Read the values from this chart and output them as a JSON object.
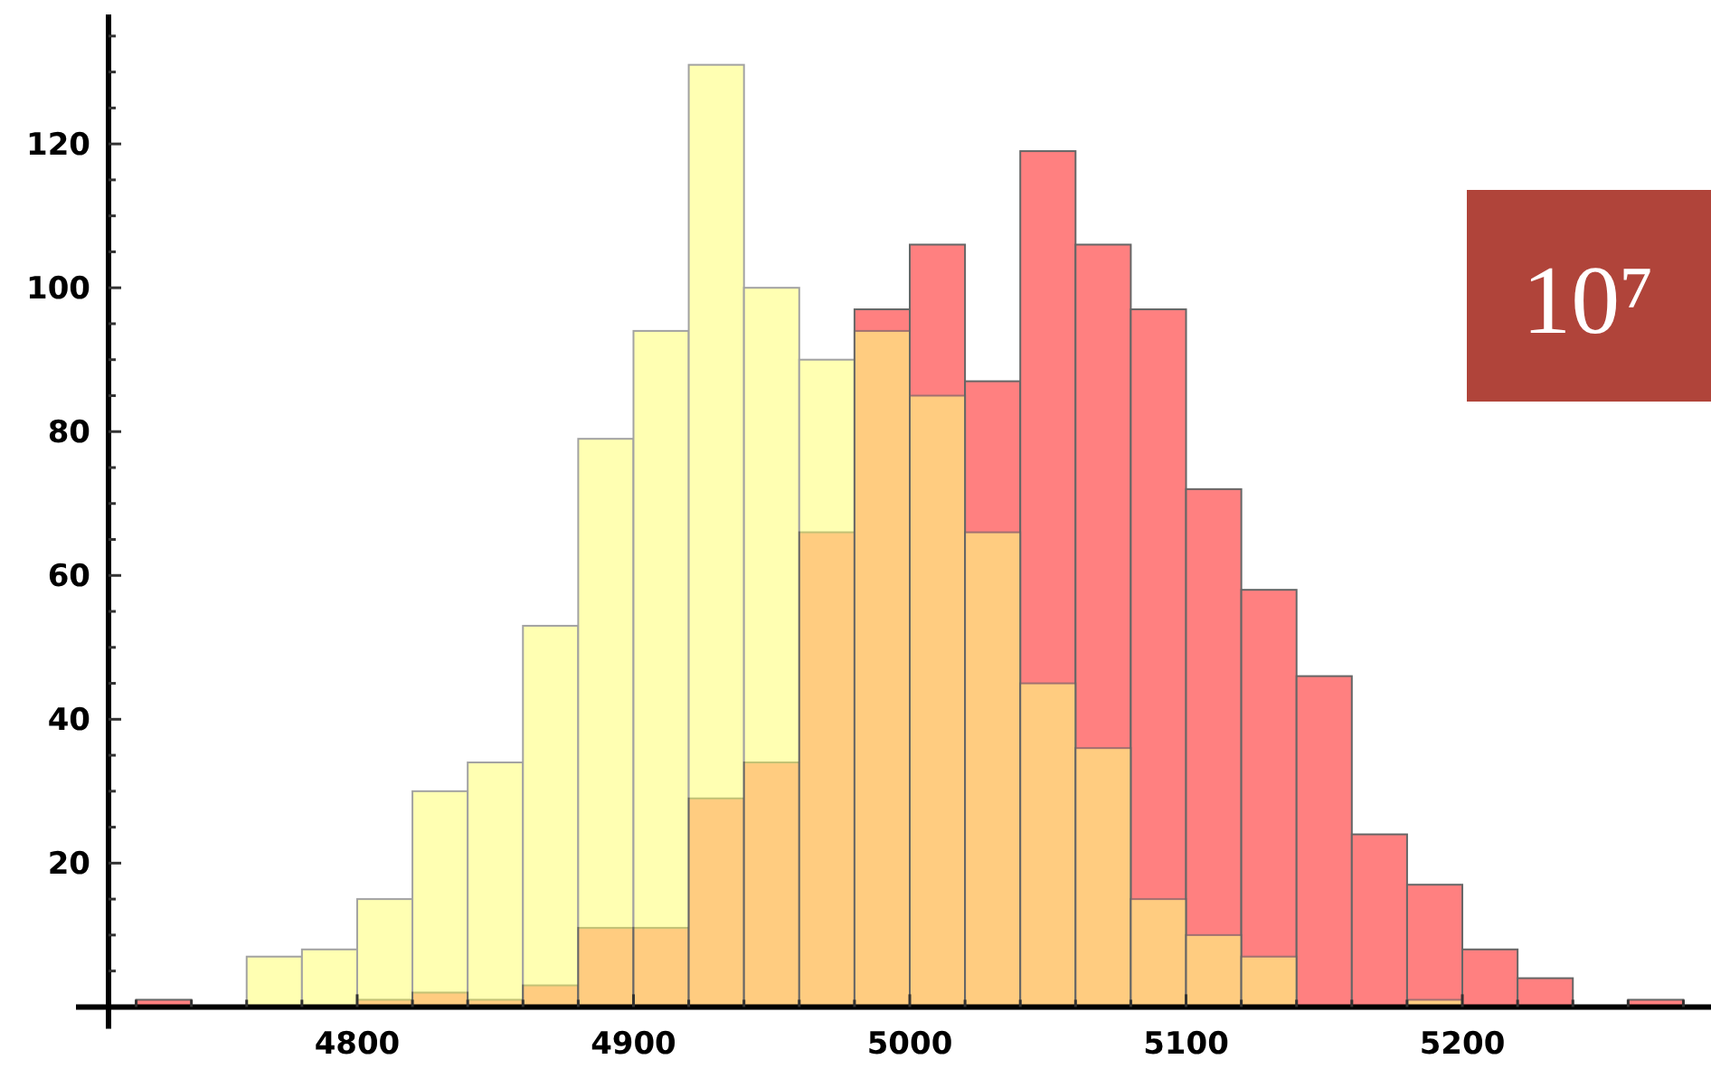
{
  "chart_data": {
    "type": "histogram",
    "bins": [
      4720,
      4740,
      4760,
      4780,
      4800,
      4820,
      4840,
      4860,
      4880,
      4900,
      4920,
      4940,
      4960,
      4980,
      5000,
      5020,
      5040,
      5060,
      5080,
      5100,
      5120,
      5140,
      5160,
      5180,
      5200,
      5220,
      5240,
      5260,
      5280
    ],
    "series": [
      {
        "color": "#ff8080",
        "values": [
          1,
          0,
          0,
          0,
          1,
          2,
          1,
          3,
          11,
          11,
          29,
          34,
          66,
          97,
          106,
          87,
          119,
          106,
          97,
          72,
          58,
          46,
          24,
          17,
          8,
          4,
          0,
          1
        ]
      },
      {
        "color": "#ffff80",
        "values": [
          0,
          0,
          7,
          8,
          15,
          30,
          34,
          53,
          79,
          94,
          131,
          100,
          90,
          94,
          85,
          66,
          45,
          36,
          15,
          10,
          7,
          0,
          0,
          1,
          0,
          0,
          0,
          0
        ]
      }
    ],
    "xlim": [
      4710,
      5290
    ],
    "ylim": [
      0,
      138
    ],
    "xticks": [
      {
        "value": 4720,
        "label": null
      },
      {
        "value": 4740,
        "label": null
      },
      {
        "value": 4760,
        "label": null
      },
      {
        "value": 4780,
        "label": null
      },
      4800,
      {
        "value": 4820,
        "label": null
      },
      {
        "value": 4840,
        "label": null
      },
      {
        "value": 4860,
        "label": null
      },
      {
        "value": 4880,
        "label": null
      },
      4900,
      {
        "value": 4920,
        "label": null
      },
      {
        "value": 4940,
        "label": null
      },
      {
        "value": 4960,
        "label": null
      },
      {
        "value": 4980,
        "label": null
      },
      5000,
      {
        "value": 5020,
        "label": null
      },
      {
        "value": 5040,
        "label": null
      },
      {
        "value": 5060,
        "label": null
      },
      {
        "value": 5080,
        "label": null
      },
      5100,
      {
        "value": 5120,
        "label": null
      },
      {
        "value": 5140,
        "label": null
      },
      {
        "value": 5160,
        "label": null
      },
      {
        "value": 5180,
        "label": null
      },
      5200,
      {
        "value": 5220,
        "label": null
      },
      {
        "value": 5240,
        "label": null
      },
      {
        "value": 5260,
        "label": null
      },
      {
        "value": 5280,
        "label": null
      }
    ],
    "yticks": [
      {
        "value": 0,
        "label": null
      },
      {
        "value": 5,
        "label": null
      },
      {
        "value": 10,
        "label": null
      },
      {
        "value": 15,
        "label": null
      },
      20,
      {
        "value": 25,
        "label": null
      },
      {
        "value": 30,
        "label": null
      },
      {
        "value": 35,
        "label": null
      },
      40,
      {
        "value": 45,
        "label": null
      },
      {
        "value": 50,
        "label": null
      },
      {
        "value": 55,
        "label": null
      },
      60,
      {
        "value": 65,
        "label": null
      },
      {
        "value": 70,
        "label": null
      },
      {
        "value": 75,
        "label": null
      },
      80,
      {
        "value": 85,
        "label": null
      },
      {
        "value": 90,
        "label": null
      },
      {
        "value": 95,
        "label": null
      },
      100,
      {
        "value": 105,
        "label": null
      },
      {
        "value": 110,
        "label": null
      },
      {
        "value": 115,
        "label": null
      },
      120,
      {
        "value": 125,
        "label": null
      },
      {
        "value": 130,
        "label": null
      },
      {
        "value": 135,
        "label": null
      }
    ],
    "annotations": [
      "10⁷"
    ],
    "grid": false
  }
}
